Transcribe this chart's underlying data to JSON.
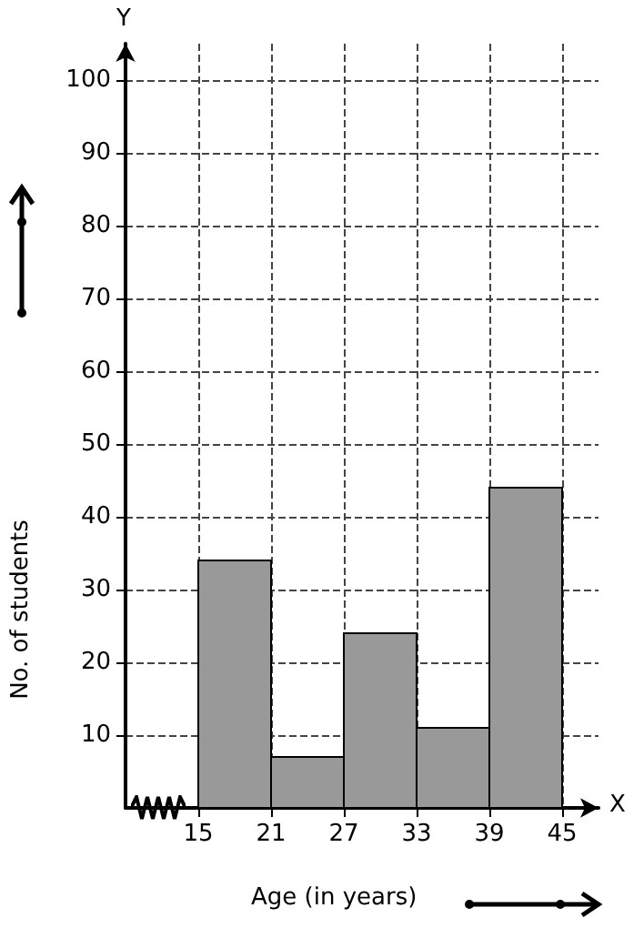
{
  "chart_data": {
    "type": "histogram",
    "xlabel": "Age (in years)",
    "ylabel": "No. of students",
    "annotations": [
      "Y",
      "X"
    ],
    "bins": [
      15,
      21,
      27,
      33,
      39,
      45
    ],
    "values": [
      34,
      7,
      24,
      11,
      44
    ],
    "color": "#999999",
    "xlim": [
      9,
      48
    ],
    "xticks": [
      15,
      21,
      27,
      33,
      39,
      45
    ],
    "ylim": [
      0,
      105
    ],
    "yticks": [
      10,
      20,
      30,
      40,
      50,
      60,
      70,
      80,
      90,
      100
    ],
    "grid": true
  }
}
